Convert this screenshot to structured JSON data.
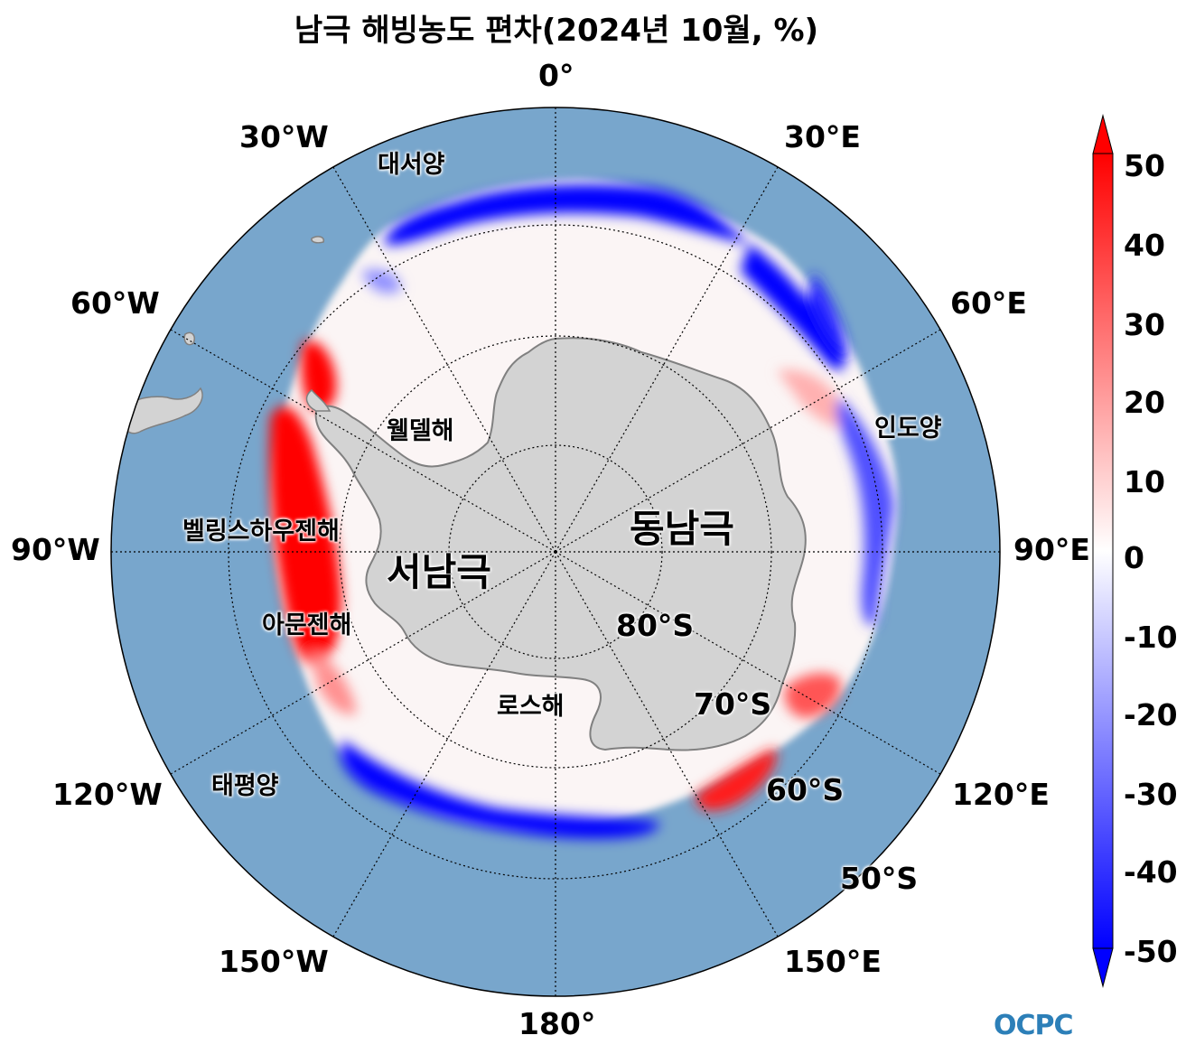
{
  "title": "남극 해빙농도 편차(2024년 10월, %)",
  "longitude_labels": [
    "0°",
    "30°E",
    "60°E",
    "90°E",
    "120°E",
    "150°E",
    "180°",
    "150°W",
    "120°W",
    "90°W",
    "60°W",
    "30°W"
  ],
  "latitude_labels": [
    "80°S",
    "70°S",
    "60°S",
    "50°S"
  ],
  "regions": {
    "atlantic": "대서양",
    "indian": "인도양",
    "pacific": "태평양",
    "weddell": "웰델해",
    "bellingshausen": "벨링스하우젠해",
    "amundsen": "아문젠해",
    "ross": "로스해",
    "west_antarctica": "서남극",
    "east_antarctica": "동남극"
  },
  "colorbar": {
    "ticks": [
      "50",
      "40",
      "30",
      "20",
      "10",
      "0",
      "-10",
      "-20",
      "-30",
      "-40",
      "-50"
    ],
    "min": -50,
    "max": 50,
    "colors": {
      "high": "#ff0000",
      "mid": "#ffffff",
      "low": "#0000ff"
    }
  },
  "colors": {
    "ocean": "#78a6cc",
    "land": "#d3d3d3",
    "coast": "#808080"
  },
  "logo": "OCPC"
}
